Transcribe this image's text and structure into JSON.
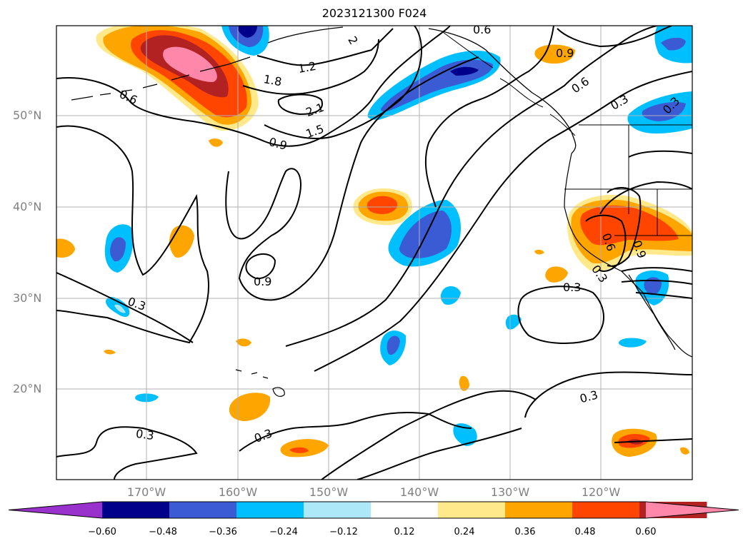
{
  "title": "2023121300 F024",
  "lat_labels": [
    "50°N",
    "40°N",
    "30°N",
    "20°N"
  ],
  "lon_labels": [
    "170°W",
    "160°W",
    "150°W",
    "140°W",
    "130°W",
    "120°W"
  ],
  "contour_labels": [
    "0.6",
    "1.2",
    "1.8",
    "2.1",
    "1.5",
    "0.9",
    "2",
    "0.6",
    "0.9",
    "0.6",
    "0.3",
    "0.3",
    "0.9",
    "0.3",
    "0.6",
    "0.9",
    "0.3",
    "0.3",
    "0.3",
    "0.3",
    "0.3"
  ],
  "colorbar": {
    "colors": [
      "#9932cc",
      "#00008b",
      "#3b5bd5",
      "#00bfff",
      "#ade8f8",
      "#ffffff",
      "#ffe98a",
      "#ffa500",
      "#ff4500",
      "#b22222",
      "#ff88aa"
    ],
    "tick_labels": [
      "−0.60",
      "−0.48",
      "−0.36",
      "−0.24",
      "−0.12",
      "0.12",
      "0.24",
      "0.36",
      "0.48",
      "0.60"
    ]
  }
}
